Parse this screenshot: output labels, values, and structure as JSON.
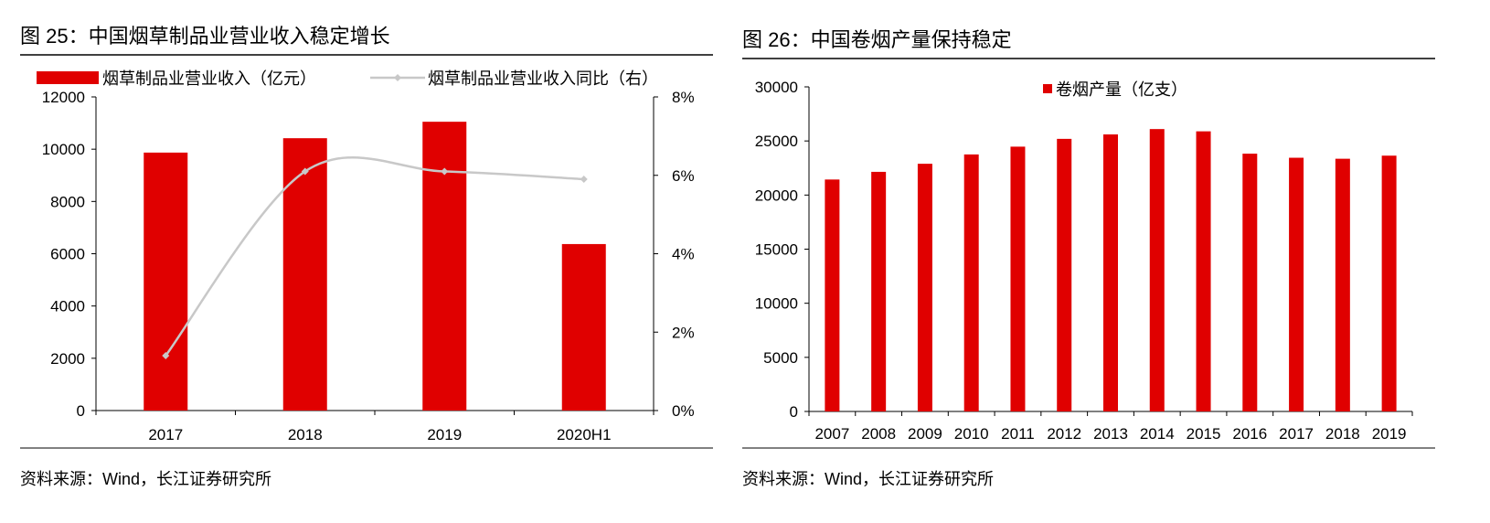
{
  "chart_data": [
    {
      "type": "bar",
      "title": "图 25：中国烟草制品业营业收入稳定增长",
      "categories": [
        "2017",
        "2018",
        "2019",
        "2020H1"
      ],
      "series": [
        {
          "name": "烟草制品业营业收入（亿元）",
          "type": "bar",
          "axis": "left",
          "values": [
            9870,
            10420,
            11050,
            6370
          ],
          "color": "#e00000"
        },
        {
          "name": "烟草制品业营业收入同比（右）",
          "type": "line",
          "axis": "right",
          "values": [
            1.4,
            6.1,
            6.1,
            5.9
          ],
          "color": "#c8c8c8"
        }
      ],
      "ylim": [
        0,
        12000
      ],
      "yticks": [
        "0",
        "2000",
        "4000",
        "6000",
        "8000",
        "10000",
        "12000"
      ],
      "y2lim": [
        0,
        8
      ],
      "y2ticks": [
        "0%",
        "2%",
        "4%",
        "6%",
        "8%"
      ],
      "legend": "top",
      "grid": false,
      "source": "资料来源：Wind，长江证券研究所"
    },
    {
      "type": "bar",
      "title": "图 26：中国卷烟产量保持稳定",
      "categories": [
        "2007",
        "2008",
        "2009",
        "2010",
        "2011",
        "2012",
        "2013",
        "2014",
        "2015",
        "2016",
        "2017",
        "2018",
        "2019"
      ],
      "series": [
        {
          "name": "卷烟产量（亿支）",
          "values": [
            21437,
            22146,
            22892,
            23754,
            24474,
            25194,
            25604,
            26099,
            25890,
            23826,
            23448,
            23356,
            23642
          ],
          "color": "#e00000"
        }
      ],
      "ylim": [
        0,
        30000
      ],
      "yticks": [
        "0",
        "5000",
        "10000",
        "15000",
        "20000",
        "25000",
        "30000"
      ],
      "legend": "top-center",
      "grid": false,
      "source": "资料来源：Wind，长江证券研究所"
    }
  ]
}
